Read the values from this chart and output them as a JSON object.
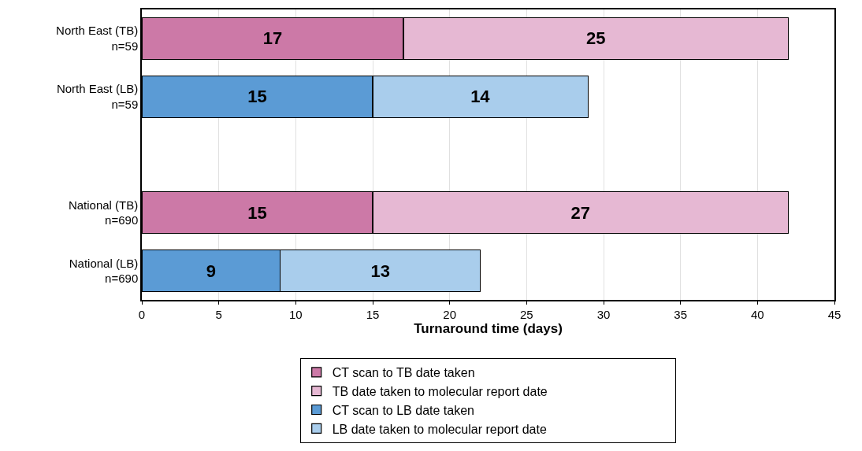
{
  "chart_data": {
    "type": "bar",
    "orientation": "horizontal",
    "stacked": true,
    "xlabel": "Turnaround time (days)",
    "categories": [
      "North East (TB)\nn=59",
      "North East (LB)\nn=59",
      null,
      "National (TB)\nn=690",
      "National (LB)\nn=690"
    ],
    "series": [
      {
        "name": "CT scan to TB date taken",
        "color": "#cc79a7",
        "values": [
          17,
          null,
          null,
          15,
          null
        ]
      },
      {
        "name": "TB date taken to molecular report date",
        "color": "#e6b8d3",
        "values": [
          25,
          null,
          null,
          27,
          null
        ]
      },
      {
        "name": "CT scan to LB date taken",
        "color": "#5b9bd5",
        "values": [
          null,
          15,
          null,
          null,
          9
        ]
      },
      {
        "name": "LB date taken to molecular report date",
        "color": "#a9cdec",
        "values": [
          null,
          14,
          null,
          null,
          13
        ]
      }
    ],
    "xlim": [
      0,
      45
    ],
    "xticks": [
      0,
      5,
      10,
      15,
      20,
      25,
      30,
      35,
      40,
      45
    ],
    "grid": "x",
    "legend": "bottom",
    "data_labels": true
  }
}
